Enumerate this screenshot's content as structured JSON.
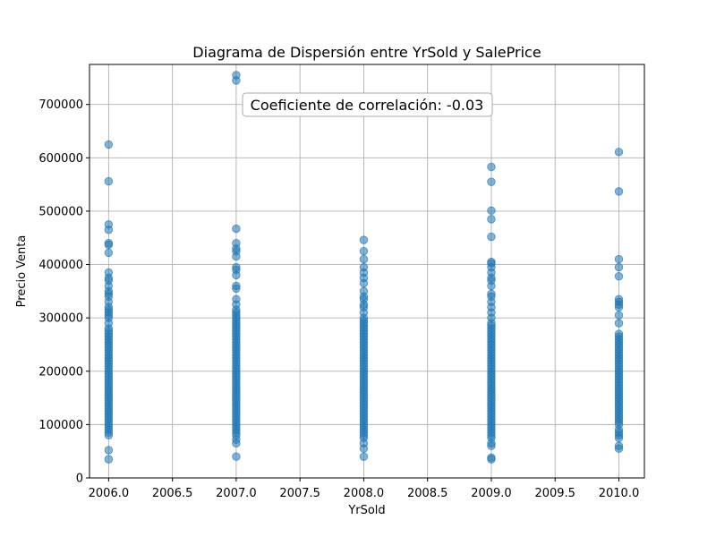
{
  "chart_data": {
    "type": "scatter",
    "title": "Diagrama de Dispersión entre YrSold y SalePrice",
    "xlabel": "YrSold",
    "ylabel": "Precio Venta",
    "xlim": [
      2005.85,
      2010.2
    ],
    "ylim": [
      0,
      775000
    ],
    "xticks": [
      2006.0,
      2006.5,
      2007.0,
      2007.5,
      2008.0,
      2008.5,
      2009.0,
      2009.5,
      2010.0
    ],
    "xtick_labels": [
      "2006.0",
      "2006.5",
      "2007.0",
      "2007.5",
      "2008.0",
      "2008.5",
      "2009.0",
      "2009.5",
      "2010.0"
    ],
    "yticks": [
      0,
      100000,
      200000,
      300000,
      400000,
      500000,
      600000,
      700000
    ],
    "ytick_labels": [
      "0",
      "100000",
      "200000",
      "300000",
      "400000",
      "500000",
      "600000",
      "700000"
    ],
    "grid": true,
    "point_color": "#1f77b4",
    "annotation": "Coeficiente de correlación: -0.03",
    "series": [
      {
        "x": 2006,
        "values": [
          35000,
          52000,
          80000,
          85000,
          90000,
          95000,
          100000,
          105000,
          110000,
          115000,
          120000,
          125000,
          130000,
          135000,
          140000,
          145000,
          150000,
          155000,
          160000,
          165000,
          170000,
          175000,
          180000,
          185000,
          190000,
          195000,
          200000,
          205000,
          210000,
          215000,
          220000,
          225000,
          230000,
          235000,
          240000,
          245000,
          250000,
          255000,
          260000,
          265000,
          270000,
          275000,
          280000,
          290000,
          300000,
          305000,
          310000,
          315000,
          320000,
          330000,
          340000,
          345000,
          350000,
          360000,
          370000,
          375000,
          385000,
          422000,
          437000,
          440000,
          465000,
          475000,
          556000,
          625000
        ]
      },
      {
        "x": 2007,
        "values": [
          40000,
          65000,
          72000,
          80000,
          85000,
          90000,
          95000,
          100000,
          105000,
          110000,
          115000,
          120000,
          125000,
          130000,
          135000,
          140000,
          145000,
          150000,
          155000,
          160000,
          165000,
          170000,
          175000,
          180000,
          185000,
          190000,
          195000,
          200000,
          205000,
          210000,
          215000,
          220000,
          225000,
          230000,
          235000,
          240000,
          245000,
          250000,
          255000,
          260000,
          265000,
          270000,
          275000,
          280000,
          285000,
          290000,
          295000,
          300000,
          305000,
          310000,
          315000,
          325000,
          335000,
          355000,
          360000,
          380000,
          390000,
          395000,
          415000,
          425000,
          430000,
          440000,
          467000,
          745000,
          755000
        ]
      },
      {
        "x": 2008,
        "values": [
          40000,
          55000,
          65000,
          75000,
          80000,
          85000,
          90000,
          95000,
          100000,
          105000,
          110000,
          115000,
          120000,
          125000,
          130000,
          135000,
          140000,
          145000,
          150000,
          155000,
          160000,
          165000,
          170000,
          175000,
          180000,
          185000,
          190000,
          195000,
          200000,
          205000,
          210000,
          215000,
          220000,
          225000,
          230000,
          235000,
          240000,
          245000,
          250000,
          255000,
          260000,
          265000,
          270000,
          275000,
          280000,
          285000,
          290000,
          295000,
          300000,
          310000,
          320000,
          325000,
          335000,
          340000,
          350000,
          365000,
          375000,
          385000,
          395000,
          410000,
          425000,
          446000
        ]
      },
      {
        "x": 2009,
        "values": [
          35000,
          38000,
          60000,
          65000,
          75000,
          80000,
          85000,
          90000,
          95000,
          100000,
          105000,
          110000,
          115000,
          120000,
          125000,
          130000,
          135000,
          140000,
          145000,
          150000,
          155000,
          160000,
          165000,
          170000,
          175000,
          180000,
          185000,
          190000,
          195000,
          200000,
          205000,
          210000,
          215000,
          220000,
          225000,
          230000,
          235000,
          240000,
          245000,
          250000,
          255000,
          260000,
          265000,
          270000,
          275000,
          280000,
          285000,
          290000,
          300000,
          310000,
          320000,
          330000,
          340000,
          345000,
          360000,
          370000,
          375000,
          385000,
          395000,
          402000,
          405000,
          452000,
          485000,
          501000,
          555000,
          583000
        ]
      },
      {
        "x": 2010,
        "values": [
          55000,
          60000,
          75000,
          80000,
          85000,
          90000,
          100000,
          105000,
          110000,
          115000,
          120000,
          125000,
          130000,
          135000,
          140000,
          145000,
          150000,
          155000,
          160000,
          165000,
          170000,
          175000,
          180000,
          185000,
          190000,
          195000,
          200000,
          205000,
          210000,
          215000,
          220000,
          225000,
          230000,
          235000,
          240000,
          245000,
          250000,
          255000,
          260000,
          265000,
          270000,
          290000,
          305000,
          320000,
          325000,
          330000,
          335000,
          378000,
          395000,
          410000,
          537000,
          611000
        ]
      }
    ]
  }
}
